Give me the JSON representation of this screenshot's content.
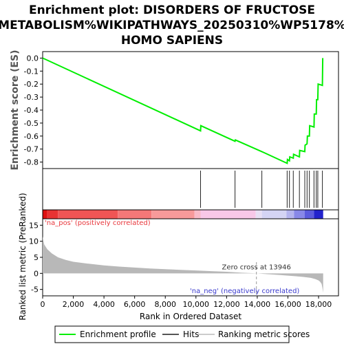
{
  "chart_data": {
    "type": "line",
    "title_lines": [
      "Enrichment plot: DISORDERS OF FRUCTOSE",
      "METABOLISM%WIKIPATHWAYS_20250310%WP5178%",
      "HOMO SAPIENS"
    ],
    "es_plot": {
      "ylabel": "Enrichment score (ES)",
      "ylim": [
        -0.85,
        0.05
      ],
      "yticks": [
        "0.0",
        "-0.1",
        "-0.2",
        "-0.3",
        "-0.4",
        "-0.5",
        "-0.6",
        "-0.7",
        "-0.8"
      ],
      "ytick_values": [
        0.0,
        -0.1,
        -0.2,
        -0.3,
        -0.4,
        -0.5,
        -0.6,
        -0.7,
        -0.8
      ],
      "series": [
        {
          "name": "Enrichment profile",
          "color": "#00ee00",
          "x": [
            0,
            10300,
            10320,
            12550,
            12570,
            14300,
            15950,
            15970,
            16100,
            16120,
            16350,
            16370,
            16750,
            16770,
            17100,
            17120,
            17250,
            17270,
            17400,
            17420,
            17700,
            17720,
            17850,
            17870,
            17950,
            17970,
            18250,
            18270
          ],
          "y": [
            0.0,
            -0.56,
            -0.52,
            -0.64,
            -0.63,
            -0.72,
            -0.81,
            -0.78,
            -0.79,
            -0.76,
            -0.77,
            -0.74,
            -0.76,
            -0.71,
            -0.72,
            -0.67,
            -0.66,
            -0.6,
            -0.6,
            -0.52,
            -0.53,
            -0.43,
            -0.43,
            -0.32,
            -0.32,
            -0.2,
            -0.21,
            0.0
          ]
        }
      ]
    },
    "hits_plot": {
      "name": "Hits",
      "positions": [
        10300,
        12550,
        14300,
        15950,
        16100,
        16350,
        16750,
        17100,
        17250,
        17400,
        17700,
        17850,
        17950,
        18250
      ]
    },
    "rank_plot": {
      "ylabel": "Ranked list metric (PreRanked)",
      "xlabel": "Rank in Ordered Dataset",
      "ylim": [
        -7,
        17
      ],
      "yticks": [
        "-5",
        "0",
        "5",
        "10",
        "15"
      ],
      "ytick_values": [
        -5,
        0,
        5,
        10,
        15
      ],
      "xticks": [
        "0",
        "2,000",
        "4,000",
        "6,000",
        "8,000",
        "10,000",
        "12,000",
        "14,000",
        "16,000",
        "18,000"
      ],
      "xtick_values": [
        0,
        2000,
        4000,
        6000,
        8000,
        10000,
        12000,
        14000,
        16000,
        18000
      ],
      "xlim": [
        0,
        19300
      ],
      "n_genes": 18300,
      "zero_cross": 13946,
      "zero_cross_label": "Zero cross at 13946",
      "pos_label": "'na_pos' (positively correlated)",
      "neg_label": "'na_neg' (negatively correlated)",
      "pos_label_color": "#e8383d",
      "neg_label_color": "#3a3acc",
      "curve_x": [
        0,
        100,
        300,
        600,
        1000,
        1500,
        2000,
        3000,
        4000,
        5000,
        6000,
        7000,
        8000,
        9000,
        10000,
        11000,
        12000,
        13000,
        13946,
        14500,
        15000,
        15500,
        16000,
        16500,
        17000,
        17500,
        17800,
        18000,
        18100,
        18200,
        18250,
        18300
      ],
      "curve_y": [
        11.5,
        9.0,
        7.5,
        6.2,
        5.0,
        4.2,
        3.6,
        3.0,
        2.5,
        2.1,
        1.8,
        1.5,
        1.3,
        1.1,
        0.9,
        0.7,
        0.5,
        0.2,
        0.0,
        -0.2,
        -0.35,
        -0.5,
        -0.7,
        -0.9,
        -1.1,
        -1.4,
        -1.8,
        -2.2,
        -2.6,
        -3.3,
        -4.5,
        -6.0
      ]
    },
    "heat_strip": {
      "segments": [
        {
          "x0": 0,
          "x1": 300,
          "color": "#dd1111"
        },
        {
          "x0": 300,
          "x1": 1000,
          "color": "#e83333"
        },
        {
          "x0": 1000,
          "x1": 4900,
          "color": "#f05555"
        },
        {
          "x0": 4900,
          "x1": 7100,
          "color": "#f47878"
        },
        {
          "x0": 7100,
          "x1": 9900,
          "color": "#f79a9a"
        },
        {
          "x0": 9900,
          "x1": 10300,
          "color": "#f8bbc8"
        },
        {
          "x0": 10300,
          "x1": 13900,
          "color": "#f8c8e8"
        },
        {
          "x0": 13900,
          "x1": 14300,
          "color": "#e8e0f4"
        },
        {
          "x0": 14300,
          "x1": 15900,
          "color": "#d4d4f4"
        },
        {
          "x0": 15900,
          "x1": 16400,
          "color": "#b4b4ee"
        },
        {
          "x0": 16400,
          "x1": 17100,
          "color": "#8888e8"
        },
        {
          "x0": 17100,
          "x1": 17700,
          "color": "#5b5bdd"
        },
        {
          "x0": 17700,
          "x1": 18300,
          "color": "#2222cc"
        }
      ]
    },
    "legend": [
      {
        "label": "Enrichment profile",
        "color": "#00ee00"
      },
      {
        "label": "Hits",
        "color": "#555555"
      },
      {
        "label": "Ranking metric scores",
        "color": "#cccccc"
      }
    ]
  }
}
